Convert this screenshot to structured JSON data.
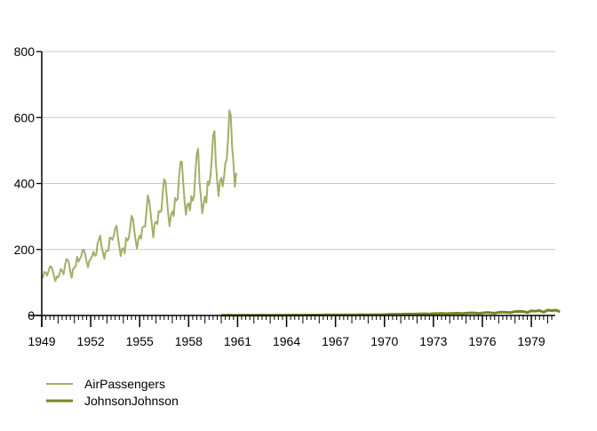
{
  "chart_data": {
    "type": "line",
    "title": "",
    "xlabel": "",
    "ylabel": "",
    "xlim": [
      1949,
      1980.75
    ],
    "ylim": [
      0,
      800
    ],
    "yticks": [
      0,
      200,
      400,
      600,
      800
    ],
    "xticks": [
      1949,
      1952,
      1955,
      1958,
      1961,
      1964,
      1967,
      1970,
      1973,
      1976,
      1979
    ],
    "grid": "horizontal",
    "legend_position": "bottom-left",
    "series": [
      {
        "name": "AirPassengers",
        "color": "#a3ae68",
        "start": 1949,
        "frequency": 12,
        "values": [
          112,
          118,
          132,
          129,
          121,
          135,
          148,
          148,
          136,
          119,
          104,
          118,
          115,
          126,
          141,
          135,
          125,
          149,
          170,
          170,
          158,
          133,
          114,
          140,
          145,
          150,
          178,
          163,
          172,
          178,
          199,
          199,
          184,
          162,
          146,
          166,
          171,
          180,
          193,
          181,
          183,
          218,
          230,
          242,
          209,
          191,
          172,
          194,
          196,
          196,
          236,
          235,
          229,
          243,
          264,
          272,
          237,
          211,
          180,
          201,
          204,
          188,
          235,
          227,
          234,
          264,
          302,
          293,
          259,
          229,
          203,
          229,
          242,
          233,
          267,
          269,
          270,
          315,
          364,
          347,
          312,
          274,
          237,
          278,
          284,
          277,
          317,
          313,
          318,
          374,
          413,
          405,
          355,
          306,
          271,
          306,
          315,
          301,
          356,
          348,
          355,
          422,
          465,
          467,
          404,
          347,
          305,
          336,
          340,
          318,
          362,
          348,
          363,
          435,
          491,
          505,
          404,
          359,
          310,
          337,
          360,
          342,
          406,
          396,
          420,
          472,
          548,
          559,
          463,
          407,
          362,
          405,
          417,
          391,
          419,
          461,
          472,
          535,
          622,
          606,
          508,
          461,
          390,
          432
        ]
      },
      {
        "name": "JohnsonJohnson",
        "color": "#7b8224",
        "start": 1960,
        "frequency": 4,
        "values": [
          0.71,
          0.63,
          0.85,
          0.44,
          0.61,
          0.69,
          0.92,
          0.55,
          0.72,
          0.77,
          0.92,
          0.6,
          0.83,
          0.8,
          1.0,
          0.77,
          0.92,
          1.0,
          1.24,
          1.0,
          1.16,
          1.3,
          1.45,
          1.25,
          1.26,
          1.38,
          1.86,
          1.56,
          1.53,
          1.59,
          1.83,
          1.86,
          1.53,
          2.07,
          2.34,
          2.25,
          2.16,
          2.43,
          2.7,
          2.25,
          2.79,
          3.42,
          3.69,
          3.6,
          3.6,
          4.32,
          4.32,
          4.05,
          4.86,
          5.04,
          5.04,
          4.41,
          5.58,
          5.85,
          6.57,
          5.31,
          6.03,
          6.39,
          6.93,
          5.85,
          6.93,
          7.74,
          7.83,
          6.12,
          7.74,
          8.91,
          8.28,
          6.84,
          9.54,
          10.26,
          9.54,
          8.73,
          11.88,
          12.06,
          12.15,
          8.91,
          14.04,
          12.96,
          14.85,
          9.99,
          16.2,
          14.67,
          16.02,
          11.61
        ]
      }
    ]
  }
}
